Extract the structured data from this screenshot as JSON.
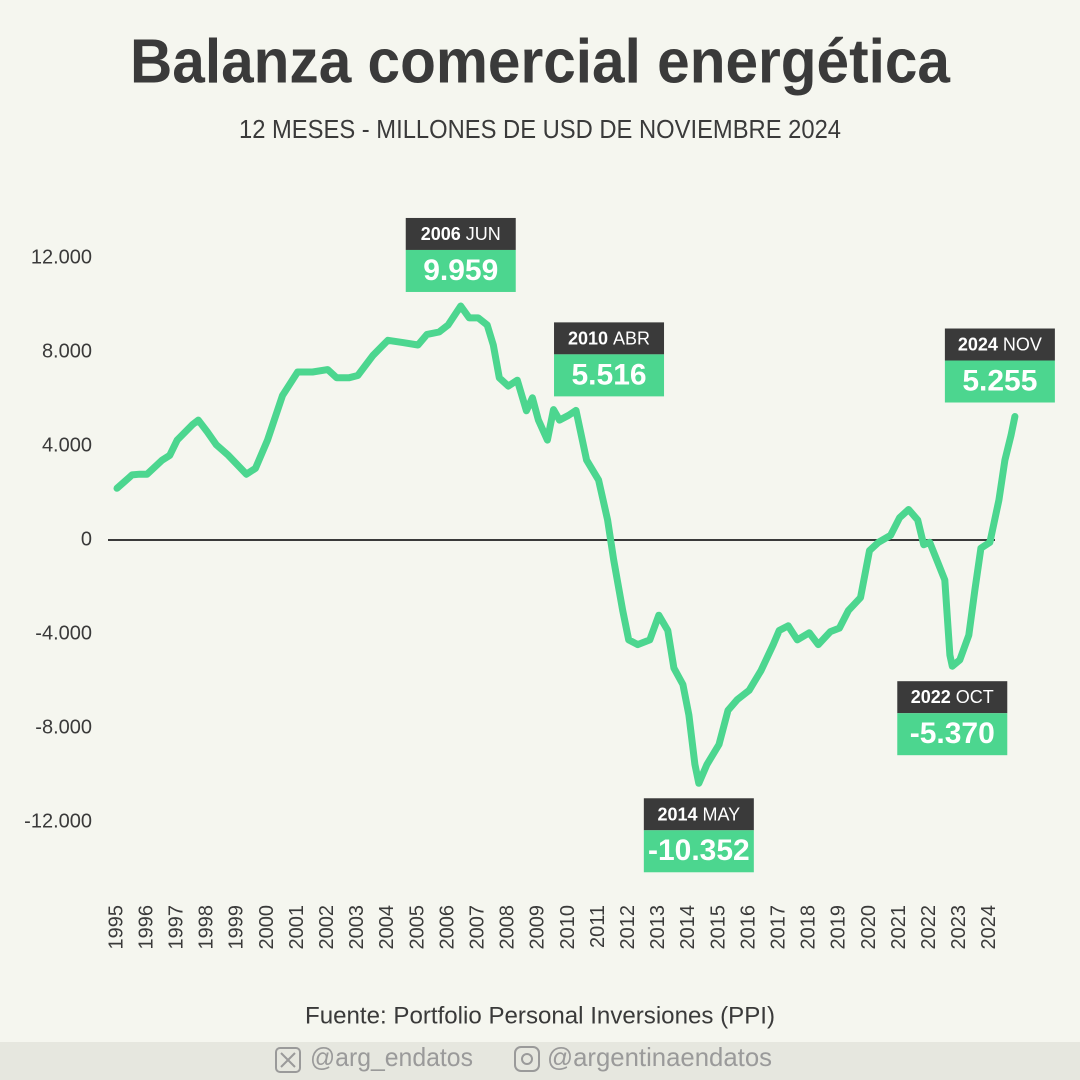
{
  "chart_data": {
    "type": "line",
    "title": "Balanza comercial energética",
    "subtitle": "12 MESES - MILLONES DE USD DE NOVIEMBRE 2024",
    "source": "Fuente: Portfolio Personal Inversiones (PPI)",
    "color": "#4cd68f",
    "zero_line": true,
    "grid": false,
    "xlim": [
      1995,
      2025
    ],
    "xticks": [
      1995,
      1996,
      1997,
      1998,
      1999,
      2000,
      2001,
      2002,
      2003,
      2004,
      2005,
      2006,
      2007,
      2008,
      2009,
      2010,
      2011,
      2012,
      2013,
      2014,
      2015,
      2016,
      2017,
      2018,
      2019,
      2020,
      2021,
      2022,
      2023,
      2024
    ],
    "ylim": [
      -14000,
      14000
    ],
    "yticks": [
      {
        "value": -12000,
        "label": "-12.000"
      },
      {
        "value": -8000,
        "label": "-8.000"
      },
      {
        "value": -4000,
        "label": "-4.000"
      },
      0,
      {
        "value": 4000,
        "label": "4.000"
      },
      {
        "value": 8000,
        "label": "8.000"
      },
      {
        "value": 12000,
        "label": "12.000"
      }
    ],
    "x": [
      1995.0,
      1995.5,
      1995.75,
      1996.0,
      1996.5,
      1996.75,
      1997.0,
      1997.5,
      1997.7,
      1998.0,
      1998.3,
      1998.7,
      1999.0,
      1999.3,
      1999.6,
      2000.0,
      2000.5,
      2001.0,
      2001.5,
      2002.0,
      2002.3,
      2002.7,
      2003.0,
      2003.5,
      2004.0,
      2004.5,
      2005.0,
      2005.3,
      2005.7,
      2006.0,
      2006.42,
      2006.7,
      2007.0,
      2007.3,
      2007.5,
      2007.7,
      2008.0,
      2008.3,
      2008.6,
      2008.8,
      2009.0,
      2009.3,
      2009.5,
      2009.7,
      2010.0,
      2010.25,
      2010.6,
      2011.0,
      2011.3,
      2011.5,
      2011.8,
      2012.0,
      2012.3,
      2012.7,
      2013.0,
      2013.3,
      2013.5,
      2013.8,
      2014.0,
      2014.2,
      2014.33,
      2014.6,
      2015.0,
      2015.3,
      2015.6,
      2016.0,
      2016.4,
      2016.8,
      2017.0,
      2017.3,
      2017.6,
      2018.0,
      2018.3,
      2018.7,
      2019.0,
      2019.3,
      2019.7,
      2020.0,
      2020.3,
      2020.7,
      2021.0,
      2021.3,
      2021.6,
      2021.8,
      2022.0,
      2022.3,
      2022.5,
      2022.67,
      2022.75,
      2023.0,
      2023.3,
      2023.5,
      2023.7,
      2024.0,
      2024.3,
      2024.5,
      2024.7,
      2024.83
    ],
    "values": [
      2200,
      2770,
      2800,
      2800,
      3400,
      3600,
      4250,
      4900,
      5100,
      4600,
      4050,
      3600,
      3200,
      2800,
      3050,
      4250,
      6150,
      7150,
      7150,
      7250,
      6900,
      6900,
      7000,
      7850,
      8500,
      8400,
      8300,
      8750,
      8850,
      9150,
      9959,
      9450,
      9450,
      9150,
      8300,
      6900,
      6550,
      6800,
      5500,
      6050,
      5100,
      4250,
      5550,
      5100,
      5300,
      5516,
      3400,
      2550,
      850,
      -850,
      -3000,
      -4250,
      -4450,
      -4250,
      -3200,
      -3850,
      -5450,
      -6150,
      -7450,
      -9550,
      -10352,
      -9550,
      -8700,
      -7250,
      -6800,
      -6400,
      -5550,
      -4450,
      -3850,
      -3650,
      -4250,
      -3950,
      -4450,
      -3900,
      -3750,
      -3000,
      -2450,
      -450,
      -100,
      200,
      950,
      1300,
      850,
      -200,
      -100,
      -1050,
      -1700,
      -4900,
      -5370,
      -5100,
      -4050,
      -2150,
      -350,
      -100,
      1700,
      3400,
      4450,
      5255
    ],
    "annotations": [
      {
        "year": "2006",
        "month": "JUN",
        "x": 2006.42,
        "value": 9959,
        "label": "9.959",
        "position": "above"
      },
      {
        "year": "2010",
        "month": "ABR",
        "x": 2010.25,
        "value": 5516,
        "label": "5.516",
        "position": "above"
      },
      {
        "year": "2014",
        "month": "MAY",
        "x": 2014.33,
        "value": -10352,
        "label": "-10.352",
        "position": "below"
      },
      {
        "year": "2022",
        "month": "OCT",
        "x": 2022.75,
        "value": -5370,
        "label": "-5.370",
        "position": "below"
      },
      {
        "year": "2024",
        "month": "NOV",
        "x": 2024.83,
        "value": 5255,
        "label": "5.255",
        "position": "above"
      }
    ]
  },
  "footer": {
    "twitter": "@arg_endatos",
    "instagram": "@argentinaendatos"
  }
}
